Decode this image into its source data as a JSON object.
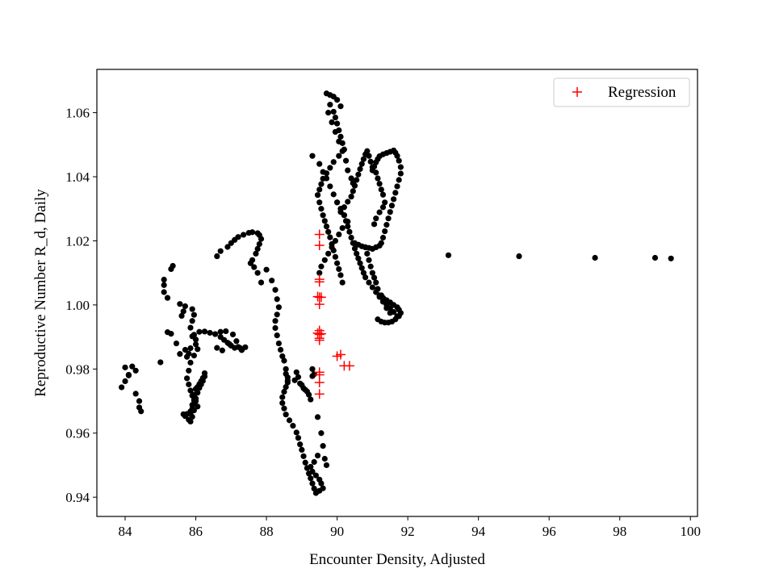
{
  "chart_data": {
    "type": "scatter",
    "title": "",
    "xlabel": "Encounter Density, Adjusted",
    "ylabel": "Reproductive Number R_d, Daily",
    "xlim": [
      83.2,
      100.2
    ],
    "ylim": [
      0.934,
      1.0735
    ],
    "xticks": [
      84,
      86,
      88,
      90,
      92,
      94,
      96,
      98,
      100
    ],
    "yticks": [
      0.94,
      0.96,
      0.98,
      1.0,
      1.02,
      1.04,
      1.06
    ],
    "xtick_labels": [
      "84",
      "86",
      "88",
      "90",
      "92",
      "94",
      "96",
      "98",
      "100"
    ],
    "ytick_labels": [
      "0.94",
      "0.96",
      "0.98",
      "1.00",
      "1.02",
      "1.04",
      "1.06"
    ],
    "grid": false,
    "legend": {
      "position": "top-right",
      "entries": [
        "Regression"
      ]
    },
    "colors": {
      "observed": "#000000",
      "regression": "#ff0000"
    },
    "series": [
      {
        "marker": "circle",
        "color": "#000000",
        "x": [
          83.9,
          84.0,
          84.1,
          84.2,
          84.3,
          84.4,
          84.45,
          84.4,
          84.3,
          84.1,
          84.0,
          85.1,
          85.1,
          85.1,
          85.2,
          85.3,
          85.35,
          85.0,
          85.2,
          85.3,
          85.45,
          85.55,
          85.7,
          85.75,
          85.8,
          85.85,
          85.9,
          85.95,
          86.0,
          86.05,
          86.0,
          85.95,
          85.85,
          85.8,
          85.75,
          85.8,
          85.85,
          85.9,
          86.0,
          86.05,
          85.95,
          85.9,
          85.85,
          85.8,
          85.85,
          85.9,
          85.95,
          86.0,
          86.05,
          86.1,
          86.15,
          86.2,
          86.25,
          85.55,
          85.7,
          85.65,
          85.6,
          85.9,
          85.95,
          85.9,
          85.85,
          85.65,
          85.7,
          85.75,
          85.85,
          85.9,
          85.95,
          85.95,
          86.0,
          86.05,
          86.1,
          86.15,
          86.2,
          86.25,
          86.6,
          86.7,
          86.9,
          87.0,
          87.1,
          87.2,
          87.35,
          87.5,
          87.6,
          87.75,
          87.8,
          87.85,
          87.8,
          87.75,
          87.7,
          87.6,
          87.55,
          87.65,
          87.75,
          87.85,
          86.1,
          86.25,
          86.4,
          86.55,
          86.7,
          86.8,
          86.9,
          87.0,
          87.1,
          87.2,
          87.25,
          87.3,
          87.4,
          86.6,
          86.75,
          86.95,
          87.15,
          86.85,
          87.05,
          86.7,
          88.0,
          88.15,
          88.25,
          88.3,
          88.35,
          88.3,
          88.25,
          88.25,
          88.3,
          88.35,
          88.4,
          88.45,
          88.5,
          88.55,
          88.55,
          88.6,
          88.6,
          88.6,
          88.55,
          88.5,
          88.45,
          88.45,
          88.5,
          88.55,
          88.65,
          88.75,
          88.85,
          88.9,
          88.95,
          89.0,
          89.05,
          89.1,
          89.15,
          89.2,
          89.25,
          89.3,
          89.35,
          89.4,
          89.5,
          89.6,
          89.55,
          89.5,
          89.4,
          89.3,
          89.25,
          89.35,
          89.45,
          88.85,
          88.9,
          88.95,
          89.05,
          89.15,
          89.2,
          89.25,
          88.8,
          89.0,
          89.1,
          89.3,
          89.35,
          89.3,
          89.45,
          89.55,
          89.6,
          89.65,
          89.7,
          89.7,
          89.8,
          89.9,
          90.0,
          90.1,
          89.75,
          89.85,
          89.95,
          90.05,
          90.15,
          90.25,
          90.3,
          90.4,
          90.45,
          89.8,
          89.9,
          89.95,
          90.0,
          90.05,
          90.1,
          90.15,
          90.2,
          90.05,
          89.9,
          89.8,
          89.7,
          89.6,
          89.55,
          89.5,
          89.45,
          89.5,
          89.55,
          89.6,
          89.65,
          89.7,
          89.75,
          89.8,
          89.85,
          89.9,
          89.95,
          90.0,
          90.05,
          90.1,
          90.15,
          90.0,
          90.1,
          90.2,
          90.25,
          90.3,
          90.35,
          90.4,
          90.45,
          90.5,
          90.55,
          90.6,
          90.65,
          90.7,
          90.75,
          90.8,
          90.9,
          91.0,
          91.1,
          91.2,
          91.3,
          91.4,
          91.5,
          91.6,
          91.7,
          91.05,
          91.1,
          91.2,
          91.3,
          91.35,
          91.3,
          91.25,
          91.2,
          91.15,
          91.1,
          91.0,
          90.95,
          90.9,
          90.85,
          90.8,
          90.75,
          90.7,
          90.65,
          90.6,
          90.55,
          90.5,
          90.45,
          90.4,
          90.3,
          90.2,
          90.1,
          90.5,
          90.6,
          90.7,
          90.8,
          90.9,
          91.0,
          91.1,
          91.2,
          91.25,
          91.3,
          91.35,
          91.4,
          91.45,
          91.5,
          91.55,
          91.6,
          91.65,
          91.7,
          91.75,
          91.8,
          91.8,
          91.75,
          91.7,
          91.65,
          91.6,
          91.5,
          91.4,
          91.3,
          91.2,
          91.15,
          91.1,
          91.05,
          91.0,
          91.15,
          91.25,
          91.35,
          91.45,
          91.55,
          91.65,
          91.75,
          91.8,
          91.75,
          91.7,
          91.6,
          91.5,
          91.4,
          91.3,
          91.25,
          90.8,
          90.85,
          90.9,
          90.95,
          91.0,
          91.05,
          91.1,
          91.15,
          91.2,
          91.3,
          91.4,
          91.5,
          89.3,
          89.5,
          89.6,
          89.7,
          89.8,
          89.9,
          90.0,
          90.1,
          90.2,
          90.3,
          90.15,
          90.05,
          89.95,
          89.85,
          89.75,
          89.65,
          89.55,
          89.5,
          93.15,
          95.15,
          97.3,
          99.0,
          99.45
        ],
        "y": [
          0.9743,
          0.9762,
          0.978,
          0.9808,
          0.9795,
          0.968,
          0.9668,
          0.97,
          0.9723,
          0.9782,
          0.9805,
          1.0079,
          1.0062,
          1.004,
          1.0022,
          1.0112,
          1.0122,
          0.9821,
          0.9915,
          0.991,
          0.988,
          0.9847,
          0.986,
          0.9838,
          0.9848,
          0.9865,
          0.9902,
          0.9907,
          0.9892,
          0.9862,
          0.9877,
          0.9842,
          0.982,
          0.9795,
          0.9771,
          0.9752,
          0.9733,
          0.9717,
          0.97,
          0.9683,
          0.9671,
          0.9651,
          0.9636,
          0.9642,
          0.9661,
          0.9676,
          0.9692,
          0.9708,
          0.9726,
          0.9741,
          0.9752,
          0.9763,
          0.9777,
          1.0003,
          0.9996,
          0.998,
          0.9966,
          0.9987,
          0.9969,
          0.995,
          0.9929,
          0.9659,
          0.9653,
          0.966,
          0.9668,
          0.9688,
          0.9703,
          0.972,
          0.9738,
          0.9744,
          0.9753,
          0.9762,
          0.9772,
          0.9787,
          1.0152,
          1.0168,
          1.0181,
          1.0193,
          1.0203,
          1.0212,
          1.0219,
          1.0225,
          1.0227,
          1.0224,
          1.0218,
          1.0206,
          1.019,
          1.0175,
          1.016,
          1.014,
          1.013,
          1.0118,
          1.01,
          1.007,
          0.9916,
          0.9917,
          0.9913,
          0.9909,
          0.99,
          0.9891,
          0.9882,
          0.9873,
          0.9866,
          0.9869,
          0.9866,
          0.9859,
          0.9868,
          0.9866,
          0.9858,
          0.9878,
          0.9887,
          0.9918,
          0.9908,
          0.9916,
          1.011,
          1.0076,
          1.0047,
          1.0018,
          0.9993,
          0.997,
          0.995,
          0.9928,
          0.9905,
          0.988,
          0.986,
          0.984,
          0.9826,
          0.98,
          0.9785,
          0.9774,
          0.9764,
          0.9758,
          0.9744,
          0.9729,
          0.9712,
          0.9694,
          0.9677,
          0.9658,
          0.964,
          0.9623,
          0.9602,
          0.9585,
          0.9565,
          0.9548,
          0.9528,
          0.9508,
          0.9491,
          0.9474,
          0.9459,
          0.9443,
          0.9427,
          0.9413,
          0.942,
          0.9428,
          0.9443,
          0.9455,
          0.9468,
          0.948,
          0.9495,
          0.951,
          0.953,
          0.979,
          0.9775,
          0.9755,
          0.974,
          0.973,
          0.972,
          0.9705,
          0.9765,
          0.975,
          0.9735,
          0.9778,
          0.9784,
          0.98,
          0.965,
          0.96,
          0.956,
          0.952,
          0.95,
          1.066,
          1.0655,
          1.065,
          1.064,
          1.062,
          1.06,
          1.057,
          1.054,
          1.051,
          1.048,
          1.045,
          1.042,
          1.0395,
          1.038,
          1.0625,
          1.0603,
          1.0585,
          1.0566,
          1.0545,
          1.0525,
          1.0505,
          1.0485,
          1.0465,
          1.0446,
          1.0428,
          1.0411,
          1.0394,
          1.0377,
          1.036,
          1.0343,
          1.032,
          1.03,
          1.028,
          1.0262,
          1.0245,
          1.0228,
          1.0211,
          1.019,
          1.017,
          1.015,
          1.013,
          1.0112,
          1.0093,
          1.007,
          1.032,
          1.03,
          1.028,
          1.0262,
          1.0245,
          1.0228,
          1.021,
          1.0193,
          1.0176,
          1.016,
          1.0145,
          1.013,
          1.0115,
          1.01,
          1.0086,
          1.007,
          1.0055,
          1.004,
          1.0025,
          1.0012,
          1.0,
          0.999,
          0.9978,
          0.9965,
          1.0252,
          1.027,
          1.0289,
          1.0305,
          1.032,
          1.0344,
          1.036,
          1.0378,
          1.0395,
          1.0413,
          1.043,
          1.0447,
          1.0465,
          1.048,
          1.047,
          1.0455,
          1.044,
          1.0424,
          1.0407,
          1.039,
          1.0372,
          1.0355,
          1.0338,
          1.0322,
          1.0305,
          1.029,
          1.0193,
          1.0188,
          1.0183,
          1.018,
          1.0178,
          1.0175,
          1.018,
          1.0185,
          1.0193,
          1.021,
          1.023,
          1.025,
          1.027,
          1.029,
          1.031,
          1.033,
          1.035,
          1.037,
          1.039,
          1.041,
          1.043,
          1.045,
          1.0465,
          1.0475,
          1.0482,
          1.0478,
          1.0474,
          1.047,
          1.0464,
          1.0455,
          1.0445,
          1.0432,
          1.042,
          0.9955,
          0.9948,
          0.9945,
          0.9945,
          0.9948,
          0.9955,
          0.9965,
          0.9975,
          0.9985,
          0.9993,
          1.0,
          1.0008,
          1.0015,
          1.0022,
          1.003,
          1.018,
          1.016,
          1.014,
          1.012,
          1.01,
          1.0085,
          1.007,
          1.005,
          1.003,
          1.001,
          0.999,
          0.9975,
          1.0465,
          1.044,
          1.0415,
          1.0395,
          1.037,
          1.0345,
          1.032,
          1.03,
          1.028,
          1.026,
          1.024,
          1.022,
          1.02,
          1.018,
          1.016,
          1.014,
          1.012,
          1.01,
          1.0155,
          1.0152,
          1.0147,
          1.0147,
          1.0145
        ]
      },
      {
        "name": "Regression",
        "marker": "plus",
        "color": "#ff0000",
        "x": [
          89.5,
          89.5,
          89.5,
          89.5,
          89.45,
          89.5,
          89.55,
          89.5,
          89.5,
          89.45,
          89.5,
          89.55,
          89.5,
          89.5,
          89.5,
          89.5,
          90.0,
          90.1,
          90.2,
          90.35,
          89.5,
          89.5
        ],
        "y": [
          1.022,
          1.0186,
          1.008,
          1.0072,
          1.0026,
          1.0024,
          1.0024,
          1.0002,
          0.992,
          0.9912,
          0.9908,
          0.991,
          0.9896,
          0.989,
          0.979,
          0.9782,
          0.984,
          0.9845,
          0.981,
          0.981,
          0.9758,
          0.9722
        ]
      }
    ]
  }
}
